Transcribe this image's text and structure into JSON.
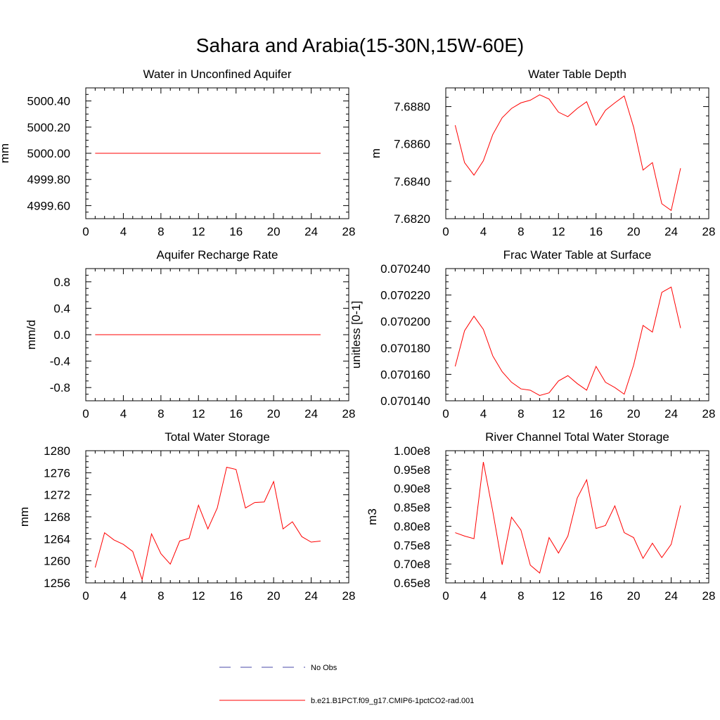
{
  "figure": {
    "title": "Sahara and Arabia(15-30N,15W-60E)",
    "legend": [
      {
        "label": "No Obs",
        "color": "#4a4aa8",
        "dash": true
      },
      {
        "label": "b.e21.B1PCT.f09_g17.CMIP6-1pctCO2-rad.001",
        "color": "#ff0000",
        "dash": false
      }
    ]
  },
  "chart_data": [
    {
      "type": "line",
      "title": "Water in Unconfined Aquifer",
      "ylabel": "mm",
      "xlim": [
        0,
        28
      ],
      "ylim": [
        4999.5,
        5000.5
      ],
      "xticks": [
        0,
        4,
        8,
        12,
        16,
        20,
        24,
        28
      ],
      "yticks": [
        4999.6,
        4999.8,
        5000.0,
        5000.2,
        5000.4
      ],
      "ytick_labels": [
        "4999.60",
        "4999.80",
        "5000.00",
        "5000.20",
        "5000.40"
      ],
      "x": [
        1,
        2,
        3,
        4,
        5,
        6,
        7,
        8,
        9,
        10,
        11,
        12,
        13,
        14,
        15,
        16,
        17,
        18,
        19,
        20,
        21,
        22,
        23,
        24,
        25
      ],
      "series": [
        {
          "color": "#ff0000",
          "values": [
            5000,
            5000,
            5000,
            5000,
            5000,
            5000,
            5000,
            5000,
            5000,
            5000,
            5000,
            5000,
            5000,
            5000,
            5000,
            5000,
            5000,
            5000,
            5000,
            5000,
            5000,
            5000,
            5000,
            5000,
            5000
          ]
        }
      ]
    },
    {
      "type": "line",
      "title": "Water Table Depth",
      "ylabel": "m",
      "xlim": [
        0,
        28
      ],
      "ylim": [
        7.682,
        7.689
      ],
      "xticks": [
        0,
        4,
        8,
        12,
        16,
        20,
        24,
        28
      ],
      "yticks": [
        7.682,
        7.684,
        7.686,
        7.688
      ],
      "ytick_labels": [
        "7.6820",
        "7.6840",
        "7.6860",
        "7.6880"
      ],
      "x": [
        1,
        2,
        3,
        4,
        5,
        6,
        7,
        8,
        9,
        10,
        11,
        12,
        13,
        14,
        15,
        16,
        17,
        18,
        19,
        20,
        21,
        22,
        23,
        24,
        25
      ],
      "series": [
        {
          "color": "#ff0000",
          "values": [
            7.687,
            7.685,
            7.68433,
            7.6851,
            7.6865,
            7.6874,
            7.6879,
            7.6882,
            7.68834,
            7.68863,
            7.6884,
            7.6877,
            7.68746,
            7.6879,
            7.68826,
            7.687,
            7.6878,
            7.6882,
            7.68857,
            7.6869,
            7.6846,
            7.685,
            7.6828,
            7.68244,
            7.6847
          ]
        }
      ]
    },
    {
      "type": "line",
      "title": "Aquifer Recharge Rate",
      "ylabel": "mm/d",
      "xlim": [
        0,
        28
      ],
      "ylim": [
        -1,
        1
      ],
      "xticks": [
        0,
        4,
        8,
        12,
        16,
        20,
        24,
        28
      ],
      "yticks": [
        -0.8,
        -0.4,
        0.0,
        0.4,
        0.8
      ],
      "ytick_labels": [
        "-0.8",
        "-0.4",
        "0.0",
        "0.4",
        "0.8"
      ],
      "x": [
        1,
        2,
        3,
        4,
        5,
        6,
        7,
        8,
        9,
        10,
        11,
        12,
        13,
        14,
        15,
        16,
        17,
        18,
        19,
        20,
        21,
        22,
        23,
        24,
        25
      ],
      "series": [
        {
          "color": "#ff0000",
          "values": [
            0,
            0,
            0,
            0,
            0,
            0,
            0,
            0,
            0,
            0,
            0,
            0,
            0,
            0,
            0,
            0,
            0,
            0,
            0,
            0,
            0,
            0,
            0,
            0,
            0
          ]
        }
      ]
    },
    {
      "type": "line",
      "title": "Frac Water Table at Surface",
      "ylabel": "unitless [0-1]",
      "xlim": [
        0,
        28
      ],
      "ylim": [
        0.07014,
        0.07024
      ],
      "xticks": [
        0,
        4,
        8,
        12,
        16,
        20,
        24,
        28
      ],
      "yticks": [
        0.07014,
        0.07016,
        0.07018,
        0.0702,
        0.07022,
        0.07024
      ],
      "ytick_labels": [
        "0.070140",
        "0.070160",
        "0.070180",
        "0.070200",
        "0.070220",
        "0.070240"
      ],
      "x": [
        1,
        2,
        3,
        4,
        5,
        6,
        7,
        8,
        9,
        10,
        11,
        12,
        13,
        14,
        15,
        16,
        17,
        18,
        19,
        20,
        21,
        22,
        23,
        24,
        25
      ],
      "series": [
        {
          "color": "#ff0000",
          "values": [
            0.070166,
            0.070193,
            0.070204,
            0.070194,
            0.070174,
            0.070162,
            0.070154,
            0.070149,
            0.070148,
            0.070144,
            0.070146,
            0.070155,
            0.070159,
            0.070153,
            0.070148,
            0.070166,
            0.070154,
            0.07015,
            0.070145,
            0.070167,
            0.070197,
            0.070192,
            0.070222,
            0.070226,
            0.070195
          ]
        }
      ]
    },
    {
      "type": "line",
      "title": "Total Water Storage",
      "ylabel": "mm",
      "xlim": [
        0,
        28
      ],
      "ylim": [
        1256,
        1280
      ],
      "xticks": [
        0,
        4,
        8,
        12,
        16,
        20,
        24,
        28
      ],
      "yticks": [
        1256,
        1260,
        1264,
        1268,
        1272,
        1276,
        1280
      ],
      "ytick_labels": [
        "1256",
        "1260",
        "1264",
        "1268",
        "1272",
        "1276",
        "1280"
      ],
      "x": [
        1,
        2,
        3,
        4,
        5,
        6,
        7,
        8,
        9,
        10,
        11,
        12,
        13,
        14,
        15,
        16,
        17,
        18,
        19,
        20,
        21,
        22,
        23,
        24,
        25
      ],
      "series": [
        {
          "color": "#ff0000",
          "values": [
            1258.8,
            1265.1,
            1263.8,
            1263.0,
            1261.7,
            1256.6,
            1264.9,
            1261.3,
            1259.4,
            1263.6,
            1264.1,
            1270.1,
            1265.8,
            1269.6,
            1277.0,
            1276.6,
            1269.6,
            1270.6,
            1270.7,
            1274.4,
            1265.8,
            1267.1,
            1264.4,
            1263.4,
            1263.6
          ]
        }
      ]
    },
    {
      "type": "line",
      "title": "River Channel Total Water Storage",
      "ylabel": "m3",
      "xlim": [
        0,
        28
      ],
      "ylim": [
        65000000,
        100000000
      ],
      "xticks": [
        0,
        4,
        8,
        12,
        16,
        20,
        24,
        28
      ],
      "yticks": [
        65000000,
        70000000,
        75000000,
        80000000,
        85000000,
        90000000,
        95000000,
        100000000
      ],
      "ytick_labels": [
        "0.65e8",
        "0.70e8",
        "0.75e8",
        "0.80e8",
        "0.85e8",
        "0.90e8",
        "0.95e8",
        "1.00e8"
      ],
      "x": [
        1,
        2,
        3,
        4,
        5,
        6,
        7,
        8,
        9,
        10,
        11,
        12,
        13,
        14,
        15,
        16,
        17,
        18,
        19,
        20,
        21,
        22,
        23,
        24,
        25
      ],
      "series": [
        {
          "color": "#ff0000",
          "values": [
            78300000,
            77400000,
            76700000,
            97000000,
            84000000,
            69800000,
            82400000,
            79000000,
            69700000,
            67600000,
            77000000,
            72900000,
            77400000,
            87500000,
            92300000,
            79400000,
            80200000,
            85400000,
            78300000,
            77000000,
            71500000,
            75500000,
            71700000,
            75200000,
            85500000
          ]
        }
      ]
    }
  ]
}
